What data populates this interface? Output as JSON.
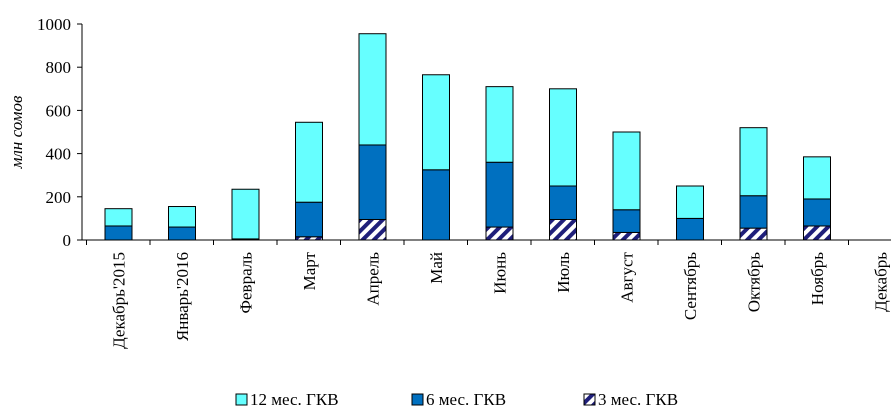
{
  "chart_data": {
    "type": "bar",
    "stacked": true,
    "categories": [
      "Декабрь'2015",
      "Январь'2016",
      "Февраль",
      "Март",
      "Апрель",
      "Май",
      "Июнь",
      "Июль",
      "Август",
      "Сентябрь",
      "Октябрь",
      "Ноябрь",
      "Декабрь"
    ],
    "series": [
      {
        "name": "3 мес. ГКВ",
        "color": "#ffffff",
        "pattern": "navy-diagonal-stripes",
        "values": [
          0,
          0,
          0,
          15,
          95,
          0,
          60,
          95,
          35,
          0,
          55,
          65,
          0
        ]
      },
      {
        "name": "6 мес. ГКВ",
        "color": "#0070c0",
        "values": [
          65,
          60,
          5,
          160,
          345,
          325,
          300,
          155,
          105,
          100,
          150,
          125,
          0
        ]
      },
      {
        "name": "12 мес. ГКВ",
        "color": "#66ffff",
        "values": [
          80,
          95,
          230,
          370,
          515,
          440,
          350,
          450,
          360,
          150,
          315,
          195,
          0
        ]
      }
    ],
    "title": "",
    "xlabel": "",
    "ylabel": "млн сомов",
    "ylim": [
      0,
      1000
    ],
    "yticks": [
      0,
      200,
      400,
      600,
      800,
      1000
    ],
    "grid": false,
    "legend_position": "bottom",
    "legend_order": [
      "12 мес. ГКВ",
      "6 мес. ГКВ",
      "3 мес. ГКВ"
    ]
  }
}
